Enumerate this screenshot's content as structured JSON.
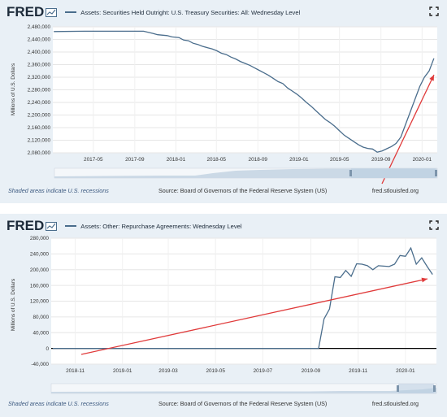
{
  "footer": {
    "recession_note": "Shaded areas indicate U.S. recessions",
    "source": "Source: Board of Governors of the Federal Reserve System (US)",
    "url": "fred.stlouisfed.org"
  },
  "brand": "FRED",
  "colors": {
    "series": "#4a6d8c",
    "arrow": "#e03a3a",
    "panel_bg": "#e9f0f6",
    "navigator": "#b9cde0"
  },
  "icons": [
    "fred-graph-icon",
    "fullscreen-icon"
  ],
  "chart_data": [
    {
      "type": "line",
      "title": "Assets: Securities Held Outright: U.S. Treasury Securities: All: Wednesday Level",
      "ylabel": "Millions of U.S. Dollars",
      "xlabel": "",
      "ylim": [
        2080000,
        2480000
      ],
      "ytick_values": [
        2080000,
        2120000,
        2160000,
        2200000,
        2240000,
        2280000,
        2320000,
        2360000,
        2400000,
        2440000,
        2480000
      ],
      "ytick_labels": [
        "2,080,000",
        "2,120,000",
        "2,160,000",
        "2,200,000",
        "2,240,000",
        "2,280,000",
        "2,320,000",
        "2,360,000",
        "2,400,000",
        "2,440,000",
        "2,480,000"
      ],
      "xlim": [
        "2017-01-01",
        "2020-02-15"
      ],
      "xtick_values": [
        "2017-05-01",
        "2017-09-01",
        "2018-01-01",
        "2018-05-01",
        "2018-09-01",
        "2019-01-01",
        "2019-05-01",
        "2019-09-01",
        "2020-01-01"
      ],
      "xtick_labels": [
        "2017-05",
        "2017-09",
        "2018-01",
        "2018-05",
        "2018-09",
        "2019-01",
        "2019-05",
        "2019-09",
        "2020-01"
      ],
      "grid": true,
      "series": [
        {
          "name": "Assets: Securities Held Outright: U.S. Treasury Securities: All: Wednesday Level",
          "x": [
            "2017-01-04",
            "2017-04-05",
            "2017-07-05",
            "2017-09-27",
            "2017-10-25",
            "2017-11-08",
            "2017-12-06",
            "2017-12-20",
            "2018-01-10",
            "2018-01-24",
            "2018-02-07",
            "2018-02-21",
            "2018-03-07",
            "2018-03-21",
            "2018-04-04",
            "2018-04-18",
            "2018-05-02",
            "2018-05-16",
            "2018-05-30",
            "2018-06-13",
            "2018-06-27",
            "2018-07-11",
            "2018-07-25",
            "2018-08-08",
            "2018-08-22",
            "2018-09-05",
            "2018-09-19",
            "2018-10-03",
            "2018-10-17",
            "2018-10-31",
            "2018-11-14",
            "2018-11-28",
            "2018-12-12",
            "2018-12-26",
            "2019-01-09",
            "2019-01-23",
            "2019-02-06",
            "2019-02-20",
            "2019-03-06",
            "2019-03-20",
            "2019-04-03",
            "2019-04-17",
            "2019-05-01",
            "2019-05-15",
            "2019-05-29",
            "2019-06-12",
            "2019-06-26",
            "2019-07-10",
            "2019-07-24",
            "2019-08-07",
            "2019-08-21",
            "2019-09-04",
            "2019-09-18",
            "2019-10-02",
            "2019-10-16",
            "2019-10-30",
            "2019-11-13",
            "2019-11-27",
            "2019-12-11",
            "2019-12-25",
            "2020-01-08",
            "2020-01-22",
            "2020-02-05"
          ],
          "values": [
            2465000,
            2466000,
            2466000,
            2466000,
            2459000,
            2455000,
            2452000,
            2448000,
            2446000,
            2438000,
            2436000,
            2428000,
            2424000,
            2418000,
            2414000,
            2410000,
            2404000,
            2396000,
            2392000,
            2384000,
            2378000,
            2370000,
            2364000,
            2358000,
            2350000,
            2342000,
            2334000,
            2326000,
            2316000,
            2306000,
            2300000,
            2286000,
            2276000,
            2266000,
            2254000,
            2240000,
            2228000,
            2214000,
            2200000,
            2186000,
            2176000,
            2164000,
            2150000,
            2136000,
            2126000,
            2116000,
            2106000,
            2098000,
            2094000,
            2092000,
            2082000,
            2086000,
            2093000,
            2100000,
            2110000,
            2130000,
            2170000,
            2210000,
            2250000,
            2290000,
            2320000,
            2340000,
            2380000
          ]
        }
      ]
    },
    {
      "type": "line",
      "title": "Assets: Other: Repurchase Agreements: Wednesday Level",
      "ylabel": "Millions of U.S. Dollars",
      "xlabel": "",
      "ylim": [
        -40000,
        280000
      ],
      "ytick_values": [
        -40000,
        0,
        40000,
        80000,
        120000,
        160000,
        200000,
        240000,
        280000
      ],
      "ytick_labels": [
        "-40,000",
        "0",
        "40,000",
        "80,000",
        "120,000",
        "160,000",
        "200,000",
        "240,000",
        "280,000"
      ],
      "xlim": [
        "2018-10-01",
        "2020-02-10"
      ],
      "xtick_values": [
        "2018-11-01",
        "2019-01-01",
        "2019-03-01",
        "2019-05-01",
        "2019-07-01",
        "2019-09-01",
        "2019-11-01",
        "2020-01-01"
      ],
      "xtick_labels": [
        "2018-11",
        "2019-01",
        "2019-03",
        "2019-05",
        "2019-07",
        "2019-09",
        "2019-11",
        "2020-01"
      ],
      "grid": true,
      "series": [
        {
          "name": "Assets: Other: Repurchase Agreements: Wednesday Level",
          "x": [
            "2018-10-03",
            "2019-09-11",
            "2019-09-18",
            "2019-09-25",
            "2019-10-02",
            "2019-10-09",
            "2019-10-16",
            "2019-10-23",
            "2019-10-30",
            "2019-11-06",
            "2019-11-13",
            "2019-11-20",
            "2019-11-27",
            "2019-12-04",
            "2019-12-11",
            "2019-12-18",
            "2019-12-25",
            "2020-01-01",
            "2020-01-08",
            "2020-01-15",
            "2020-01-22",
            "2020-01-29",
            "2020-02-05"
          ],
          "values": [
            0,
            0,
            75000,
            100000,
            182000,
            180000,
            198000,
            183000,
            215000,
            214000,
            210000,
            200000,
            210000,
            209000,
            208000,
            214000,
            236000,
            234000,
            255000,
            214000,
            230000,
            208000,
            188000
          ]
        }
      ]
    }
  ]
}
